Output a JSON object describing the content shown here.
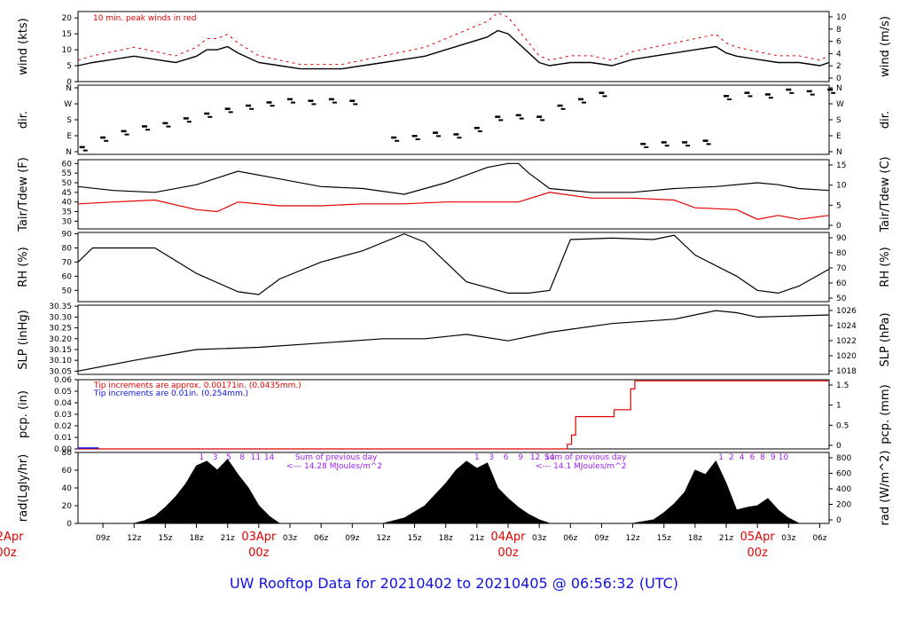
{
  "footer_title": "UW Rooftop Data for 20210402  to  20210405 @ 06:56:32  (UTC)",
  "colors": {
    "red": "#e00000",
    "blue": "#1010e0",
    "purple": "#a020f0",
    "black": "#000000"
  },
  "x_axis": {
    "tick_labels": [
      "09z",
      "12z",
      "15z",
      "18z",
      "21z",
      "03Apr",
      "03z",
      "06z",
      "09z",
      "12z",
      "15z",
      "18z",
      "21z",
      "04Apr",
      "03z",
      "06z",
      "09z",
      "12z",
      "15z",
      "18z",
      "21z",
      "05Apr",
      "03z",
      "06z"
    ],
    "day_labels": [
      {
        "date": "02Apr",
        "time": "00z"
      },
      {
        "date": "03Apr",
        "time": "00z"
      },
      {
        "date": "04Apr",
        "time": "00z"
      },
      {
        "date": "05Apr",
        "time": "00z"
      }
    ],
    "range_hours": [
      6.6,
      78.9
    ]
  },
  "chart_data": [
    {
      "type": "line",
      "name": "wind",
      "ylabel": "wind (kts)",
      "ylabel_right": "wind (m/s)",
      "ylim": [
        0,
        22
      ],
      "yticks": [
        0,
        5,
        10,
        15,
        20
      ],
      "yticks_right_values": [
        0,
        2,
        4,
        6,
        8,
        10
      ],
      "annotation": "10 min. peak winds in red",
      "x": [
        6.6,
        8,
        10,
        12,
        14,
        16,
        18,
        19,
        20,
        21,
        22,
        24,
        26,
        28,
        30,
        32,
        34,
        36,
        38,
        40,
        42,
        44,
        46,
        47,
        48,
        49,
        50,
        51,
        52,
        54,
        56,
        58,
        60,
        62,
        64,
        66,
        68,
        69,
        70,
        72,
        74,
        76,
        78,
        78.9
      ],
      "y": [
        5,
        6,
        7,
        8,
        7,
        6,
        8,
        10,
        10,
        11,
        9,
        6,
        5,
        4,
        4,
        4,
        5,
        6,
        7,
        8,
        10,
        12,
        14,
        16,
        15,
        12,
        9,
        6,
        5,
        6,
        6,
        5,
        7,
        8,
        9,
        10,
        11,
        9,
        8,
        7,
        6,
        6,
        5,
        6
      ]
    },
    {
      "type": "scatter",
      "name": "dir.",
      "ylabel": "dir.",
      "yticks": [
        "N",
        "E",
        "S",
        "W",
        "N"
      ],
      "x": [
        7,
        9,
        11,
        13,
        15,
        17,
        19,
        21,
        23,
        25,
        27,
        29,
        31,
        33,
        37,
        39,
        41,
        43,
        45,
        47,
        49,
        51,
        53,
        55,
        57,
        61,
        63,
        65,
        67,
        69,
        71,
        73,
        75,
        77,
        79
      ],
      "y": [
        0.3,
        0.9,
        1.3,
        1.6,
        1.8,
        2.1,
        2.4,
        2.7,
        2.9,
        3.1,
        3.3,
        3.2,
        3.3,
        3.2,
        0.9,
        1.0,
        1.2,
        1.1,
        1.5,
        2.2,
        2.3,
        2.2,
        2.9,
        3.3,
        3.7,
        0.5,
        0.6,
        0.6,
        0.7,
        3.5,
        3.7,
        3.6,
        3.9,
        3.8,
        3.9
      ]
    },
    {
      "type": "line",
      "name": "Tair/Tdew",
      "ylabel": "Tair/Tdew (F)",
      "ylabel_right": "Tair/Tdew (C)",
      "ylim": [
        26,
        62
      ],
      "yticks": [
        30,
        35,
        40,
        45,
        50,
        55,
        60
      ],
      "yticks_right_values": [
        0,
        5,
        10,
        15
      ],
      "series": [
        {
          "name": "Tair",
          "color": "#000000",
          "x": [
            6.6,
            10,
            14,
            18,
            22,
            26,
            30,
            34,
            38,
            42,
            46,
            48,
            49,
            50,
            52,
            56,
            60,
            64,
            68,
            72,
            74,
            76,
            78.9
          ],
          "y": [
            48,
            46,
            45,
            49,
            56,
            52,
            48,
            47,
            44,
            50,
            58,
            60,
            60,
            55,
            47,
            45,
            45,
            47,
            48,
            50,
            49,
            47,
            46
          ]
        },
        {
          "name": "Tdew",
          "color": "#e00000",
          "x": [
            6.6,
            10,
            14,
            18,
            20,
            22,
            26,
            30,
            34,
            38,
            42,
            46,
            49,
            52,
            56,
            60,
            64,
            66,
            70,
            72,
            74,
            76,
            78.9
          ],
          "y": [
            39,
            40,
            41,
            36,
            35,
            40,
            38,
            38,
            39,
            39,
            40,
            40,
            40,
            45,
            42,
            42,
            41,
            37,
            36,
            31,
            33,
            31,
            33
          ]
        }
      ]
    },
    {
      "type": "line",
      "name": "RH",
      "ylabel": "RH (%)",
      "ylim": [
        42,
        91
      ],
      "yticks": [
        50,
        60,
        70,
        80,
        90
      ],
      "yticks_right_values": [
        50,
        60,
        70,
        80,
        90
      ],
      "x": [
        6.6,
        8,
        14,
        18,
        22,
        24,
        26,
        30,
        34,
        38,
        40,
        42,
        44,
        48,
        50,
        52,
        54,
        58,
        62,
        64,
        66,
        70,
        72,
        74,
        76,
        78.9
      ],
      "y": [
        70,
        80,
        80,
        62,
        49,
        47,
        58,
        70,
        78,
        90,
        84,
        70,
        56,
        48,
        48,
        50,
        86,
        87,
        86,
        89,
        75,
        60,
        50,
        48,
        53,
        65
      ]
    },
    {
      "type": "line",
      "name": "SLP",
      "ylabel": "SLP (inHg)",
      "ylabel_right": "SLP (hPa)",
      "ylim": [
        30.035,
        30.355
      ],
      "yticks": [
        30.05,
        30.1,
        30.15,
        30.2,
        30.25,
        30.3,
        30.35
      ],
      "yticks_right_values": [
        1018,
        1020,
        1022,
        1024,
        1026
      ],
      "x": [
        6.6,
        12,
        18,
        24,
        30,
        36,
        40,
        44,
        48,
        52,
        58,
        64,
        68,
        70,
        72,
        78.9
      ],
      "y": [
        30.05,
        30.1,
        30.15,
        30.16,
        30.18,
        30.2,
        30.2,
        30.22,
        30.19,
        30.23,
        30.27,
        30.29,
        30.33,
        30.32,
        30.3,
        30.31
      ]
    },
    {
      "type": "line",
      "name": "pcp.",
      "ylabel": "pcp. (in)",
      "ylabel_right": "pcp. (mm)",
      "ylim": [
        0,
        0.06
      ],
      "yticks": [
        0,
        0.01,
        0.02,
        0.03,
        0.04,
        0.05,
        0.06
      ],
      "yticks_right_values": [
        0,
        0.5,
        1,
        1.5
      ],
      "notes": [
        {
          "text": "Tip increments are approx. 0.00171in. (0.0435mm.)",
          "color": "#e00000"
        },
        {
          "text": "Tip increments are 0.01in. (0.254mm.)",
          "color": "#1010e0"
        }
      ],
      "x": [
        6.6,
        53.3,
        53.7,
        54.1,
        54.5,
        57.8,
        58.2,
        59.8,
        60.2
      ],
      "y": [
        0,
        0,
        0.004,
        0.012,
        0.028,
        0.028,
        0.034,
        0.052,
        0.059
      ]
    },
    {
      "type": "area",
      "name": "rad",
      "ylabel": "rad(Lgly/hr)",
      "ylabel_right": "rad (W/m^2)",
      "ylim": [
        0,
        80
      ],
      "yticks": [
        0,
        20,
        40,
        60,
        80
      ],
      "yticks_right_values": [
        0,
        200,
        400,
        600,
        800
      ],
      "hour_marks": [
        "1",
        "3",
        "5",
        "8",
        "11",
        "14",
        "1",
        "3",
        "6",
        "9",
        "12",
        "14",
        "1",
        "2",
        "4",
        "6",
        "8",
        "9",
        "10"
      ],
      "day_sums": [
        {
          "line1": "Sum of previous day",
          "line2": "<--- 14.28 MJoules/m^2"
        },
        {
          "line1": "Sum of previous day",
          "line2": "<--- 14.1 MJoules/m^2"
        }
      ],
      "x": [
        6.6,
        12,
        13,
        14,
        15,
        16,
        17,
        18,
        19,
        20,
        21,
        22,
        23,
        24,
        25,
        26,
        36,
        38,
        40,
        42,
        43,
        44,
        45,
        46,
        47,
        48,
        49,
        50,
        51,
        52,
        53,
        60,
        62,
        63,
        64,
        65,
        66,
        67,
        68,
        69,
        70,
        71,
        72,
        73,
        74,
        75,
        76,
        78.9
      ],
      "y": [
        0,
        0,
        3,
        8,
        18,
        30,
        45,
        65,
        70,
        60,
        72,
        55,
        40,
        20,
        8,
        0,
        0,
        6,
        20,
        45,
        60,
        70,
        62,
        68,
        40,
        28,
        18,
        10,
        4,
        0,
        0,
        0,
        4,
        12,
        22,
        35,
        60,
        55,
        70,
        45,
        15,
        18,
        20,
        28,
        15,
        6,
        0,
        0
      ]
    }
  ]
}
